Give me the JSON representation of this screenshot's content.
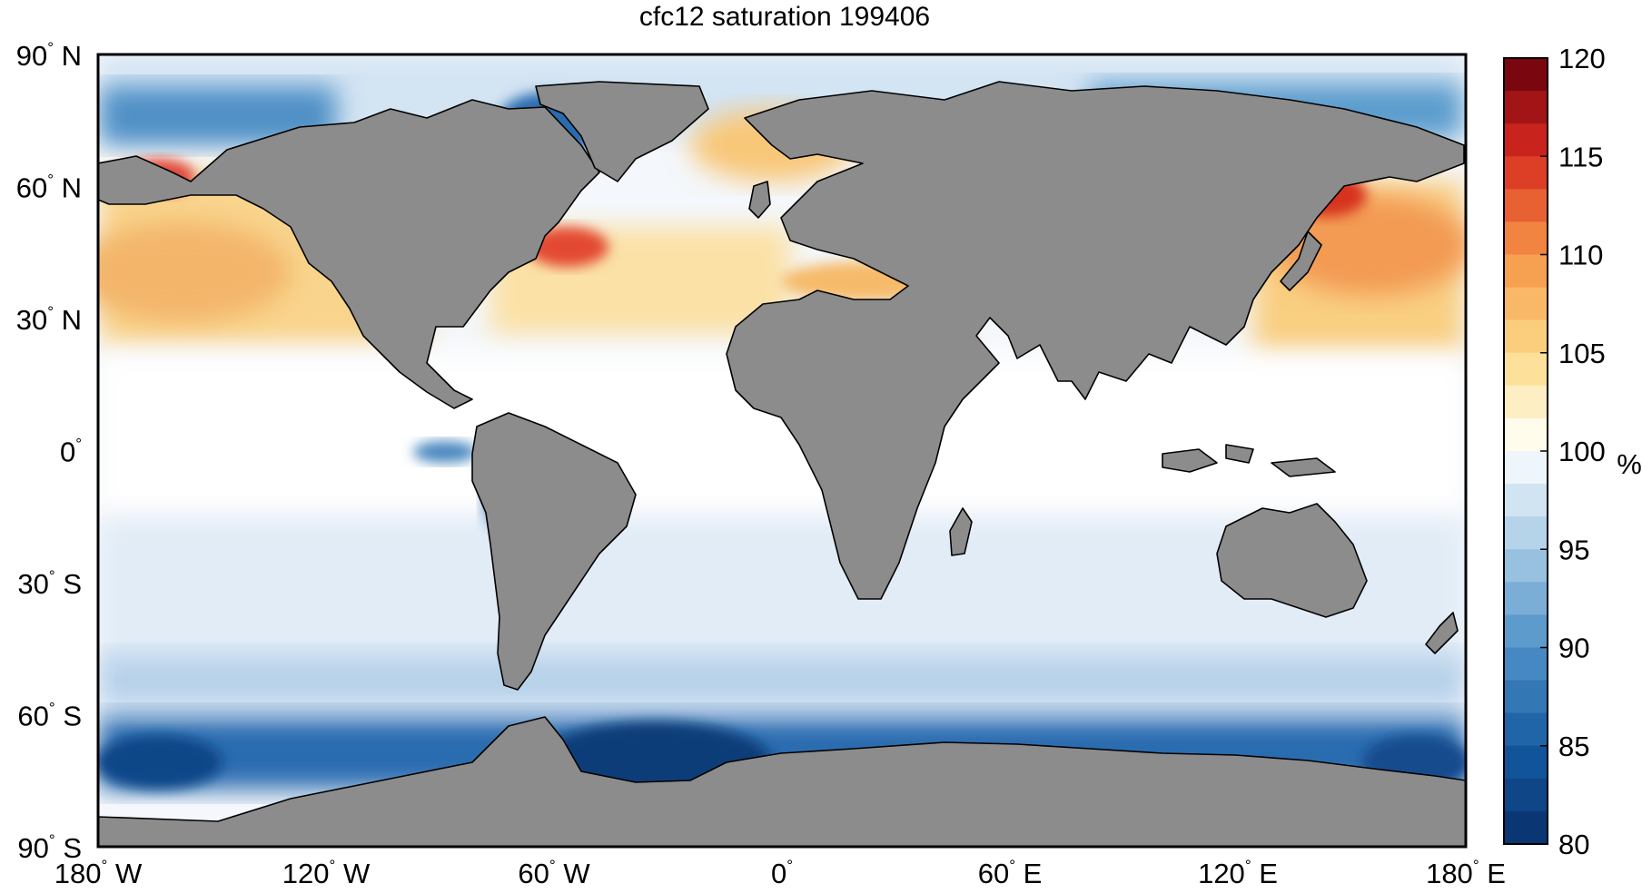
{
  "title": "cfc12 saturation 199406",
  "colorbar": {
    "unit": "%",
    "min": 80,
    "max": 120,
    "tick_labels": [
      "120",
      "115",
      "110",
      "105",
      "100",
      "95",
      "90",
      "85",
      "80"
    ],
    "levels": 24
  },
  "axes": {
    "y_ticks": [
      {
        "num": "90",
        "hemi": "N"
      },
      {
        "num": "60",
        "hemi": "N"
      },
      {
        "num": "30",
        "hemi": "N"
      },
      {
        "num": "0",
        "hemi": ""
      },
      {
        "num": "30",
        "hemi": "S"
      },
      {
        "num": "60",
        "hemi": "S"
      },
      {
        "num": "90",
        "hemi": "S"
      }
    ],
    "x_ticks": [
      {
        "num": "180",
        "hemi": "W"
      },
      {
        "num": "120",
        "hemi": "W"
      },
      {
        "num": "60",
        "hemi": "W"
      },
      {
        "num": "0",
        "hemi": ""
      },
      {
        "num": "60",
        "hemi": "E"
      },
      {
        "num": "120",
        "hemi": "E"
      },
      {
        "num": "180",
        "hemi": "E"
      }
    ],
    "lon_range": [
      -180,
      180
    ],
    "lat_range": [
      -90,
      90
    ],
    "degree_symbol": "°"
  },
  "colors": {
    "land": "#8c8c8c",
    "coast": "#000000",
    "ocean_neutral": "#ffffff",
    "saturated_deep": "#08306b",
    "supersaturated_max": "#67000d"
  }
}
